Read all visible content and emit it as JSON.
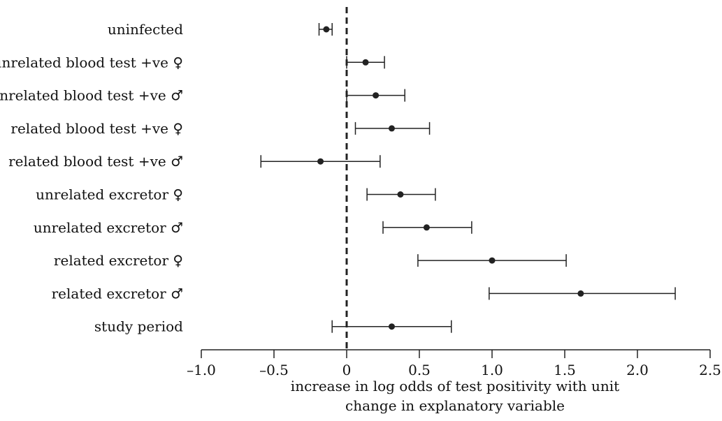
{
  "chart_data": {
    "type": "forest",
    "categories": [
      "uninfected",
      "unrelated blood test +ve ♀",
      "unrelated blood test +ve ♂",
      "related blood test +ve ♀",
      "related blood test +ve ♂",
      "unrelated excretor ♀",
      "unrelated excretor ♂",
      "related excretor ♀",
      "related excretor ♂",
      "study period"
    ],
    "estimates": [
      -0.14,
      0.13,
      0.2,
      0.31,
      -0.18,
      0.37,
      0.55,
      1.0,
      1.61,
      0.31
    ],
    "ci_lower": [
      -0.19,
      0.0,
      0.0,
      0.06,
      -0.59,
      0.14,
      0.25,
      0.49,
      0.98,
      -0.1
    ],
    "ci_upper": [
      -0.1,
      0.26,
      0.4,
      0.57,
      0.23,
      0.61,
      0.86,
      1.51,
      2.26,
      0.72
    ],
    "xlim": [
      -1.0,
      2.5
    ],
    "xticks": [
      -1.0,
      -0.5,
      0,
      0.5,
      1.0,
      1.5,
      2.0,
      2.5
    ],
    "xtick_labels": [
      "–1.0",
      "–0.5",
      "0",
      "0.5",
      "1.0",
      "1.5",
      "2.0",
      "2.5"
    ],
    "reference_line": 0,
    "xlabel_line1": "increase in log odds of test positivity with unit",
    "xlabel_line2": "change in explanatory variable",
    "ylabel": "",
    "title": "",
    "grid": false,
    "colors": {
      "marks": "#222222",
      "reference": "#222222"
    }
  }
}
